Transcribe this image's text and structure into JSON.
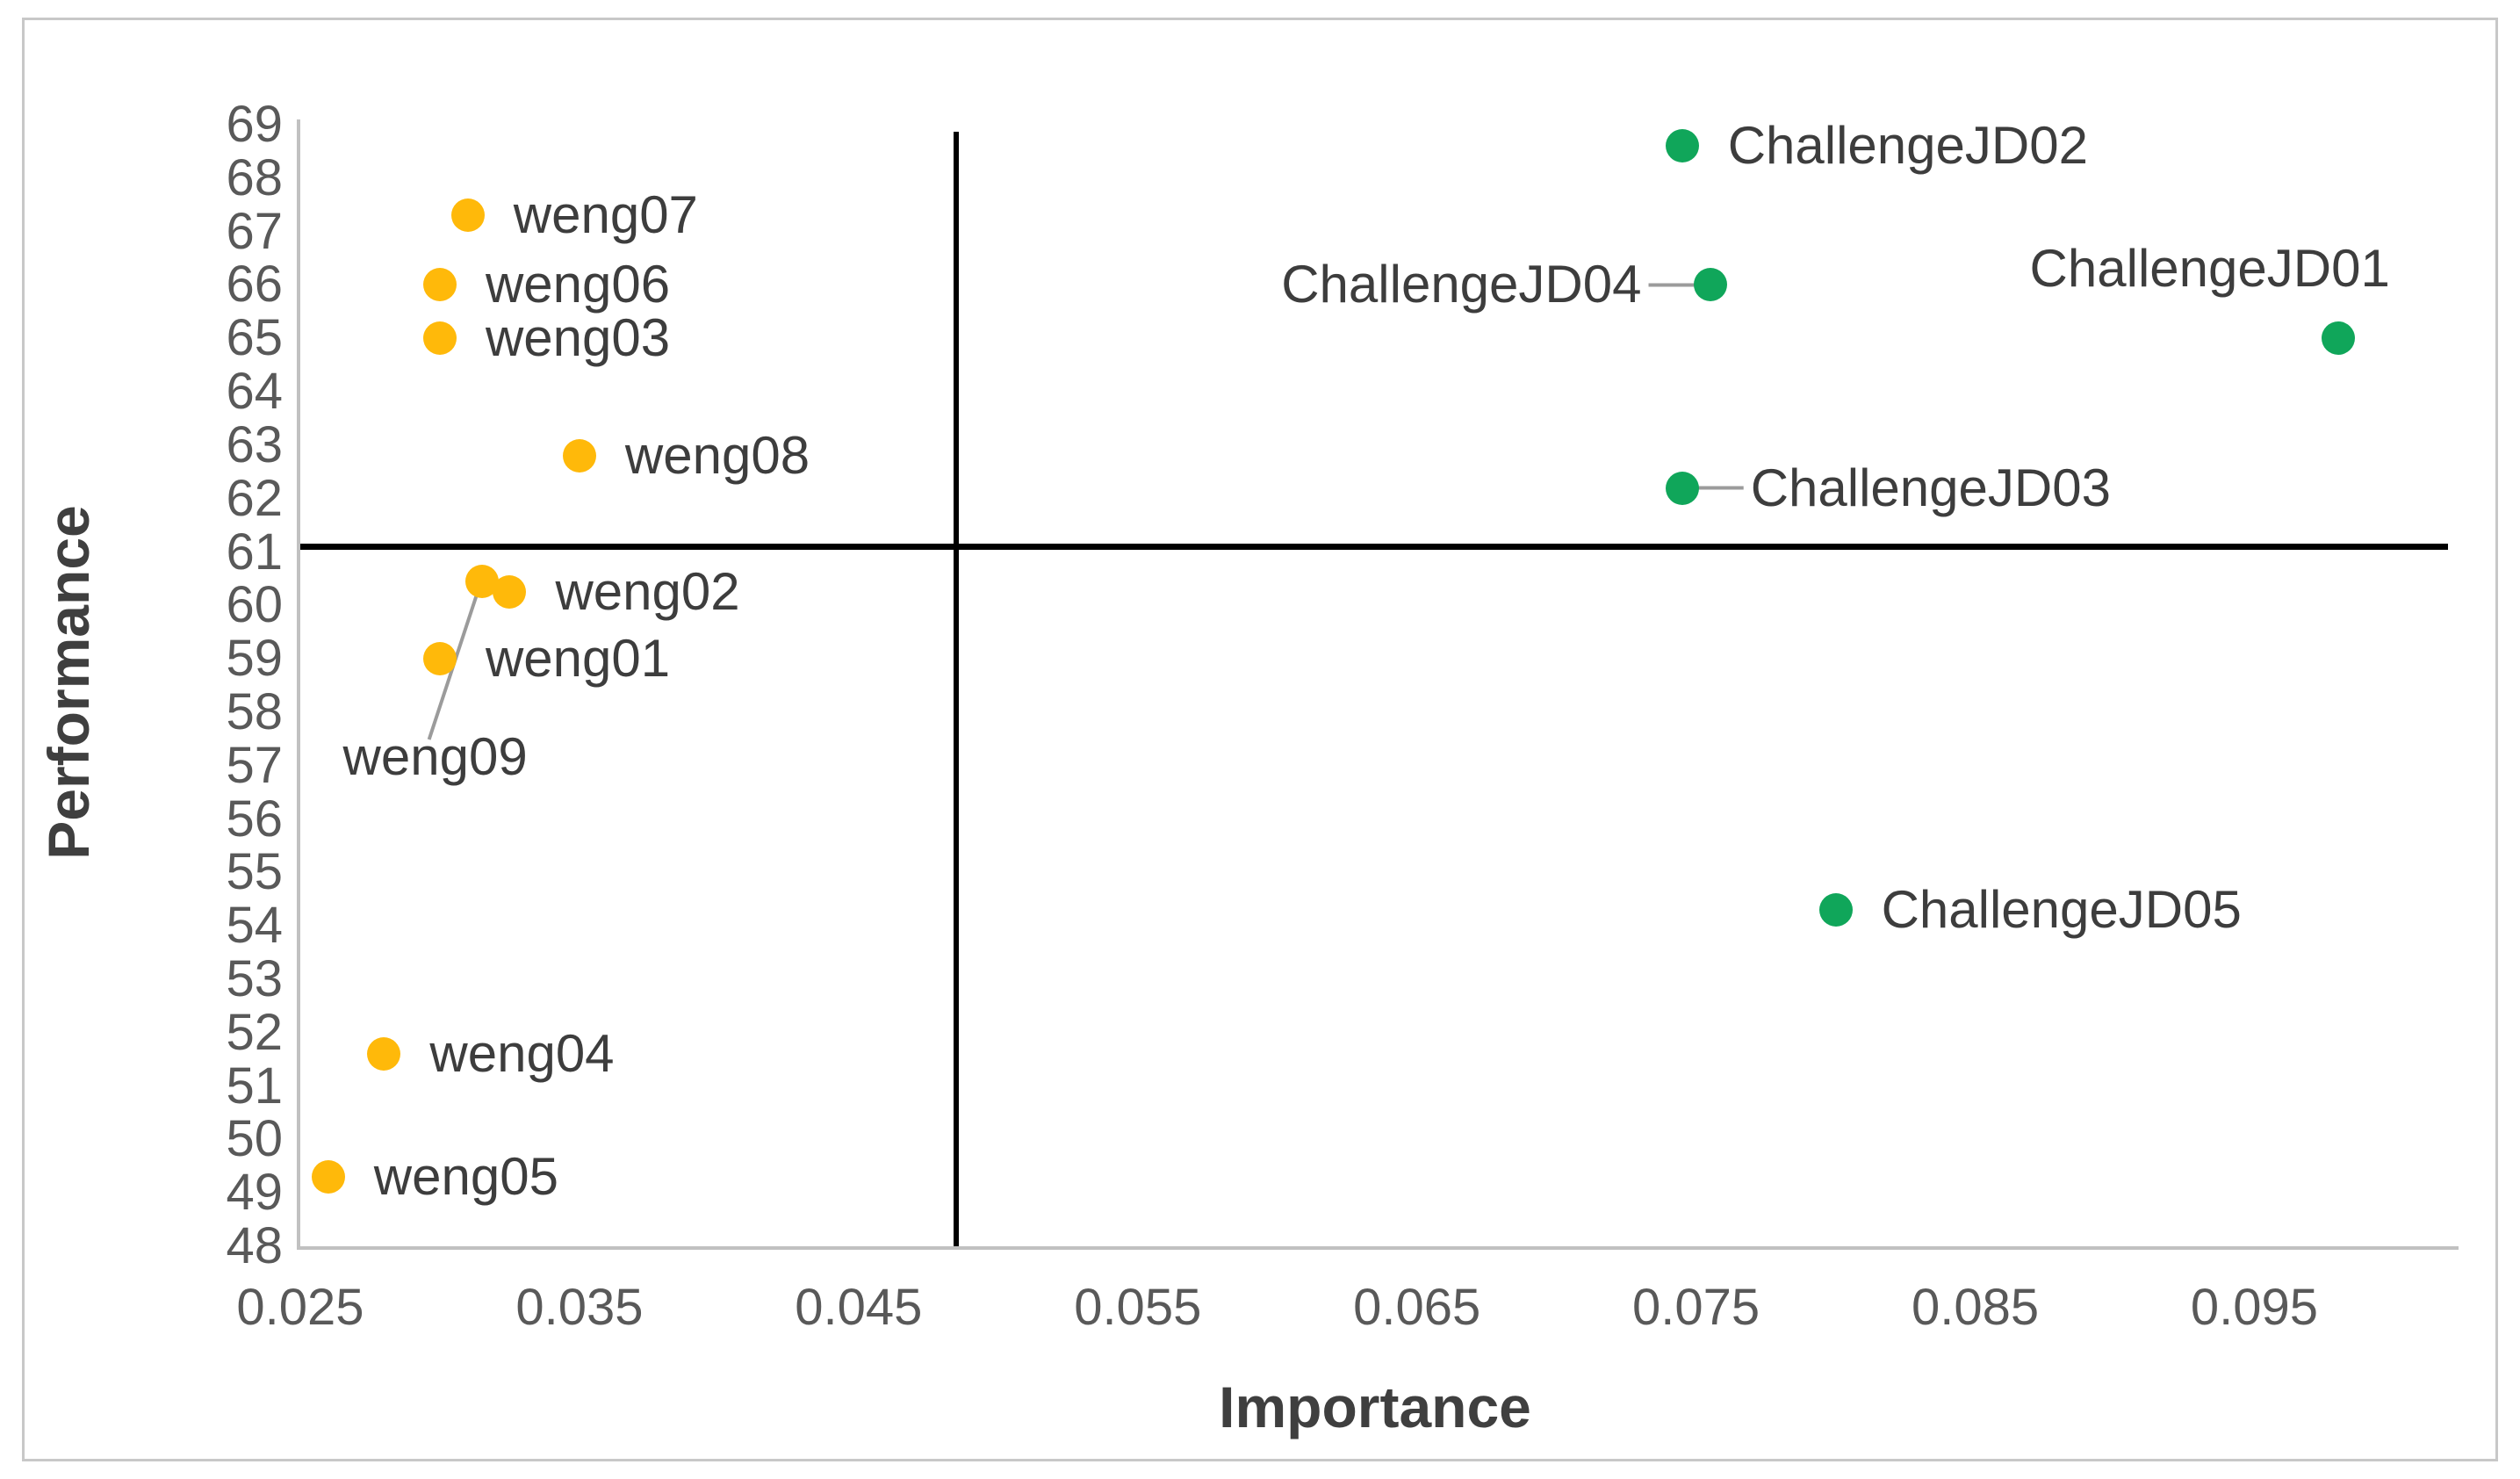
{
  "figure": {
    "background": "#ffffff",
    "border_color": "#c8c8c8"
  },
  "chart_data": {
    "type": "scatter",
    "title": "",
    "xlabel": "Importance",
    "ylabel": "Performance",
    "xlim": [
      0.025,
      0.102
    ],
    "ylim": [
      48,
      69.1
    ],
    "x_ticks": [
      "0.025",
      "0.035",
      "0.045",
      "0.055",
      "0.065",
      "0.075",
      "0.085",
      "0.095"
    ],
    "y_ticks": [
      48,
      49,
      50,
      51,
      52,
      53,
      54,
      55,
      56,
      57,
      58,
      59,
      60,
      61,
      62,
      63,
      64,
      65,
      66,
      67,
      68,
      69
    ],
    "grid": false,
    "legend": "none",
    "quadrant_line_x": 0.0485,
    "quadrant_line_y": 61.1,
    "axis_color": "#c1c1c1",
    "quadrant_line_color": "#000000",
    "tick_label_color": "#595959",
    "data_label_color": "#3d3d3d",
    "leader_color": "#9b9b9b",
    "series": [
      {
        "name": "weng",
        "color": "#FFB90A",
        "points": [
          {
            "label": "weng07",
            "x": 0.031,
            "y": 67.3,
            "label_side": "right"
          },
          {
            "label": "weng06",
            "x": 0.03,
            "y": 66.0,
            "label_side": "right"
          },
          {
            "label": "weng03",
            "x": 0.03,
            "y": 65.0,
            "label_side": "right"
          },
          {
            "label": "weng08",
            "x": 0.035,
            "y": 62.8,
            "label_side": "right"
          },
          {
            "label": "weng09",
            "x": 0.0315,
            "y": 60.45,
            "label_side": "below-left",
            "leader": true
          },
          {
            "label": "weng02",
            "x": 0.0325,
            "y": 60.25,
            "label_side": "right"
          },
          {
            "label": "weng01",
            "x": 0.03,
            "y": 59.0,
            "label_side": "right"
          },
          {
            "label": "weng04",
            "x": 0.028,
            "y": 51.6,
            "label_side": "right"
          },
          {
            "label": "weng05",
            "x": 0.026,
            "y": 49.3,
            "label_side": "right"
          }
        ]
      },
      {
        "name": "ChallengeJD",
        "color": "#10A65A",
        "points": [
          {
            "label": "ChallengeJD02",
            "x": 0.0745,
            "y": 68.6,
            "label_side": "right"
          },
          {
            "label": "ChallengeJD04",
            "x": 0.0755,
            "y": 66.0,
            "label_side": "left",
            "leader": true
          },
          {
            "label": "ChallengeJD01",
            "x": 0.098,
            "y": 65.0,
            "label_side": "above-left"
          },
          {
            "label": "ChallengeJD03",
            "x": 0.0745,
            "y": 62.2,
            "label_side": "right",
            "leader": true
          },
          {
            "label": "ChallengeJD05",
            "x": 0.08,
            "y": 54.3,
            "label_side": "right"
          }
        ]
      }
    ]
  }
}
